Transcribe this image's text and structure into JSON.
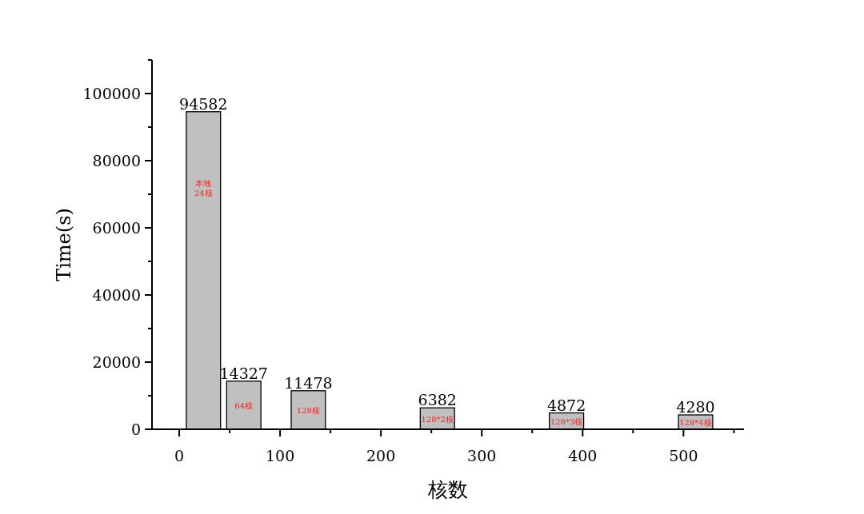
{
  "chart_data": {
    "type": "bar",
    "xlabel": "核数",
    "ylabel": "Time(s)",
    "x": [
      24,
      64,
      128,
      256,
      384,
      512
    ],
    "values": [
      94582,
      14327,
      11478,
      6382,
      4872,
      4280
    ],
    "color": "#c0c0c0",
    "data_labels": true,
    "xlim": [
      -27,
      560
    ],
    "xticks": [
      0,
      {
        "value": 50,
        "label": null
      },
      100,
      {
        "value": 150,
        "label": null
      },
      200,
      {
        "value": 250,
        "label": null
      },
      300,
      {
        "value": 350,
        "label": null
      },
      400,
      {
        "value": 450,
        "label": null
      },
      500,
      {
        "value": 550,
        "label": null
      }
    ],
    "ylim": [
      0,
      110000
    ],
    "yticks": [
      0,
      {
        "value": 10000,
        "label": null
      },
      20000,
      {
        "value": 30000,
        "label": null
      },
      40000,
      {
        "value": 50000,
        "label": null
      },
      60000,
      {
        "value": 70000,
        "label": null
      },
      80000,
      {
        "value": 90000,
        "label": null
      },
      100000,
      {
        "value": 110000,
        "label": null
      }
    ],
    "annotations": [
      "本地\n24核",
      "64核",
      "128核",
      "128*2核",
      "128*3核",
      "128*4核"
    ]
  }
}
